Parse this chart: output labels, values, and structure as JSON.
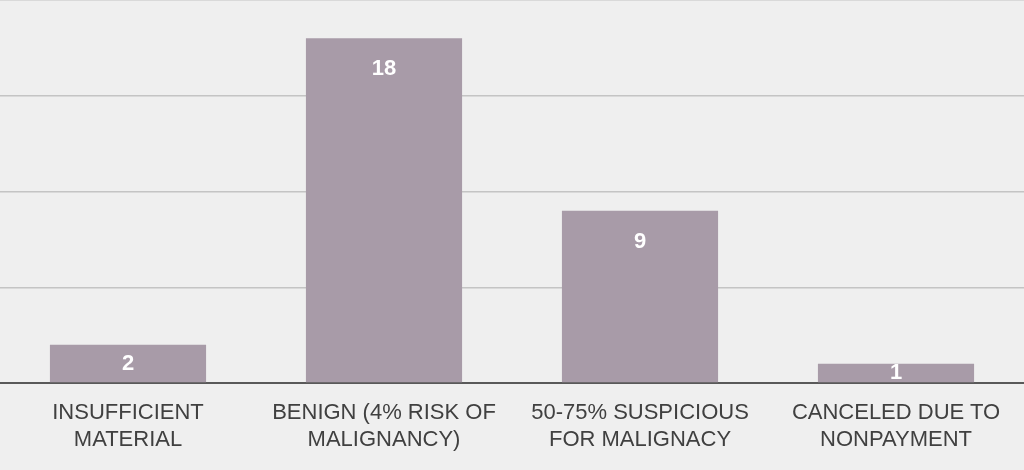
{
  "chart_data": {
    "type": "bar",
    "categories": [
      "INSUFFICIENT MATERIAL",
      "BENIGN (4% RISK OF MALIGNANCY)",
      "50-75% SUSPICIOUS FOR MALIGNACY",
      "CANCELED DUE TO NONPAYMENT"
    ],
    "values": [
      2,
      18,
      9,
      1
    ],
    "color": "#a89ba8",
    "grid": "y",
    "legend": false,
    "tick_labels": "x",
    "data_labels": true
  }
}
